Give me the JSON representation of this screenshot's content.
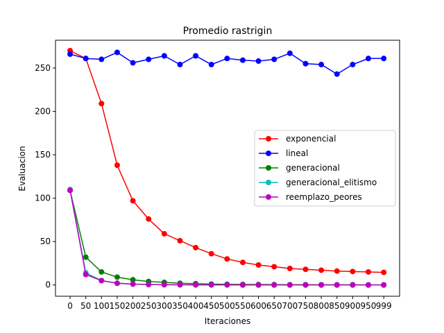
{
  "chart_data": {
    "type": "line",
    "title": "Promedio rastrigin",
    "xlabel": "Iteraciones",
    "ylabel": "Evaluacion",
    "x": [
      0,
      50,
      100,
      150,
      200,
      250,
      300,
      350,
      400,
      450,
      500,
      550,
      600,
      650,
      700,
      750,
      800,
      850,
      900,
      950,
      999
    ],
    "xticks": [
      "0",
      "50",
      "100",
      "150",
      "200",
      "250",
      "300",
      "350",
      "400",
      "450",
      "500",
      "550",
      "600",
      "650",
      "700",
      "750",
      "800",
      "850",
      "900",
      "950",
      "999"
    ],
    "yticks": [
      0,
      50,
      100,
      150,
      200,
      250
    ],
    "xlim": [
      -46.5,
      1049.5
    ],
    "ylim": [
      -13,
      282
    ],
    "grid": false,
    "legend_position": "center-right",
    "series": [
      {
        "name": "exponencial",
        "color": "#ff0000",
        "values": [
          270,
          261,
          209,
          138,
          97,
          76,
          59,
          51,
          43,
          36,
          30,
          26,
          23,
          21,
          19,
          18,
          17,
          16,
          15.5,
          15,
          14.5
        ]
      },
      {
        "name": "lineal",
        "color": "#0000ff",
        "values": [
          266,
          261,
          260,
          268,
          256,
          260,
          264,
          254,
          264,
          254,
          261,
          259,
          258,
          260,
          267,
          255,
          254,
          243,
          254,
          261,
          261
        ]
      },
      {
        "name": "generacional",
        "color": "#008000",
        "values": [
          109,
          32,
          15,
          9,
          6,
          4,
          3,
          2,
          1.5,
          1,
          0.8,
          0.6,
          0.5,
          0.4,
          0.3,
          0.3,
          0.2,
          0.2,
          0.2,
          0.1,
          0.1
        ]
      },
      {
        "name": "generacional_elitismo",
        "color": "#00bfbf",
        "values": [
          110,
          14,
          5,
          2,
          1,
          0.5,
          0.3,
          0.2,
          0.1,
          0.1,
          0.1,
          0,
          0,
          0,
          0,
          0,
          0,
          0,
          0,
          0,
          0
        ]
      },
      {
        "name": "reemplazo_peores",
        "color": "#bf00bf",
        "values": [
          109,
          12,
          5,
          2,
          1,
          0.5,
          0.3,
          0.2,
          0.1,
          0.1,
          0.1,
          0,
          0,
          0,
          0,
          0,
          0,
          0,
          0,
          0,
          0
        ]
      }
    ]
  }
}
